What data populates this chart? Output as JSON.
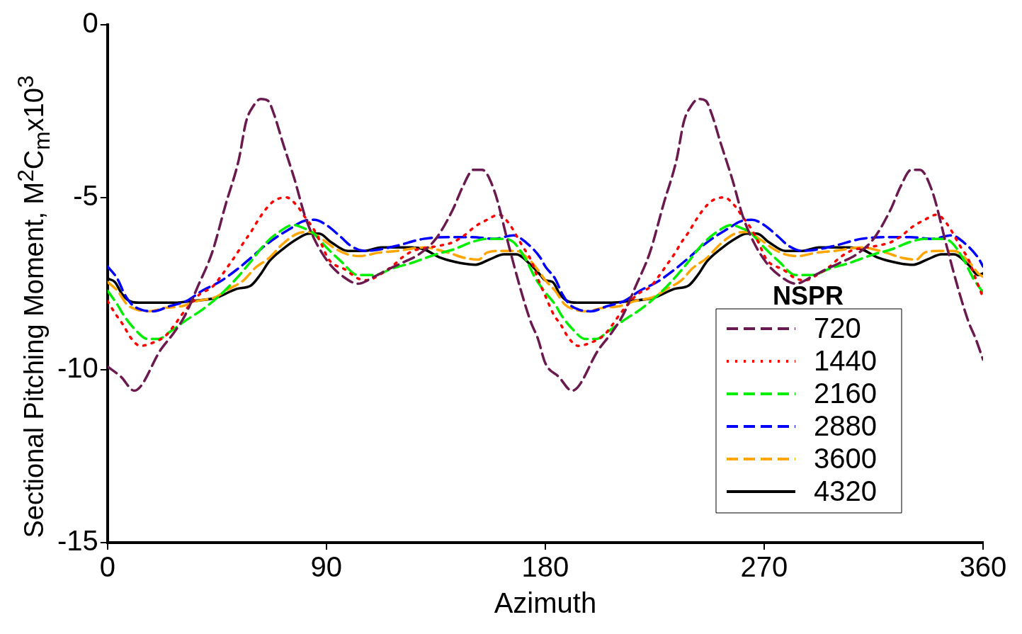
{
  "chart_data": {
    "type": "line",
    "xlabel": "Azimuth",
    "ylabel": "Sectional Pitching Moment, M$^{2}$C$_{m}$x10$^{3}$",
    "legend_title": "NSPR",
    "legend": "bottom right",
    "grid": false,
    "marker": "none",
    "xlim": [
      0,
      360
    ],
    "xticks": [
      0,
      90,
      180,
      270,
      360
    ],
    "ylim": [
      -15,
      0
    ],
    "yticks": [
      0,
      -5,
      -10,
      -15
    ],
    "series": [
      {
        "name": "720",
        "color": "#6b1a50",
        "line_style": "dashed",
        "x": [
          0,
          5.6,
          11,
          22,
          27.5,
          32,
          37,
          43,
          48.6,
          54,
          57,
          60,
          63,
          66,
          68.5,
          72,
          77,
          81,
          85,
          91,
          97,
          103,
          109.5,
          115,
          121,
          128,
          135,
          142,
          146,
          150.5,
          154,
          159,
          165,
          170,
          174,
          177,
          180,
          185.6,
          191,
          202,
          207.5,
          212,
          217,
          223,
          228.6,
          234,
          237,
          240,
          243,
          246,
          248.5,
          252,
          257,
          261,
          265,
          271,
          277,
          283,
          289.5,
          295,
          301,
          308,
          315,
          322,
          326,
          330.5,
          334,
          339,
          345,
          350,
          354,
          357,
          360
        ],
        "values": [
          -9.9,
          -10.2,
          -10.6,
          -9.4,
          -8.9,
          -8.4,
          -7.6,
          -6.6,
          -5.2,
          -3.9,
          -2.8,
          -2.35,
          -2.15,
          -2.2,
          -2.6,
          -3.4,
          -4.5,
          -5.5,
          -6.2,
          -6.9,
          -7.3,
          -7.5,
          -7.3,
          -7.1,
          -6.9,
          -6.65,
          -6.2,
          -5.35,
          -4.7,
          -4.2,
          -4.2,
          -4.8,
          -6.4,
          -7.7,
          -8.6,
          -9.1,
          -9.8,
          -10.2,
          -10.6,
          -9.4,
          -8.9,
          -8.4,
          -7.6,
          -6.6,
          -5.2,
          -3.9,
          -2.8,
          -2.35,
          -2.15,
          -2.2,
          -2.6,
          -3.4,
          -4.5,
          -5.5,
          -6.2,
          -6.9,
          -7.3,
          -7.5,
          -7.3,
          -7.1,
          -6.9,
          -6.65,
          -6.2,
          -5.35,
          -4.7,
          -4.2,
          -4.2,
          -4.8,
          -6.4,
          -7.7,
          -8.6,
          -9.1,
          -9.7
        ]
      },
      {
        "name": "1440",
        "color": "#ff0000",
        "line_style": "dotted",
        "x": [
          0,
          3.5,
          6.5,
          9.4,
          13.5,
          19,
          24,
          27.5,
          30.5,
          34,
          38,
          43,
          46.5,
          50,
          53,
          56,
          59,
          62,
          65,
          68.5,
          73.5,
          78,
          81,
          84.6,
          87.6,
          91,
          98,
          103,
          107,
          111.6,
          117,
          121,
          125.6,
          136.5,
          142,
          146.7,
          151,
          156,
          161,
          165,
          170.5,
          174,
          177.5,
          180,
          183.5,
          186.5,
          189.4,
          193.5,
          199,
          204,
          207.5,
          210.5,
          214,
          218,
          223,
          226.5,
          230,
          233,
          236,
          239,
          242,
          245,
          248.5,
          253.5,
          258,
          261,
          264.6,
          267.6,
          271,
          278,
          283,
          287,
          291.6,
          297,
          301,
          305.6,
          316.5,
          322,
          326.7,
          331,
          336,
          341,
          345,
          350.5,
          354,
          357.5,
          360
        ],
        "values": [
          -8.0,
          -8.4,
          -8.7,
          -9.05,
          -9.3,
          -9.2,
          -9.0,
          -8.7,
          -8.4,
          -8.1,
          -7.8,
          -7.6,
          -7.3,
          -6.95,
          -6.65,
          -6.3,
          -6.0,
          -5.65,
          -5.35,
          -5.1,
          -5.0,
          -5.25,
          -5.55,
          -5.9,
          -6.3,
          -6.8,
          -7.1,
          -7.35,
          -7.4,
          -7.25,
          -7.0,
          -6.75,
          -6.55,
          -6.4,
          -6.3,
          -6.1,
          -5.85,
          -5.65,
          -5.5,
          -5.75,
          -6.4,
          -6.8,
          -7.45,
          -7.85,
          -8.4,
          -8.7,
          -9.05,
          -9.3,
          -9.2,
          -9.0,
          -8.7,
          -8.4,
          -8.1,
          -7.8,
          -7.6,
          -7.3,
          -6.95,
          -6.65,
          -6.3,
          -6.0,
          -5.65,
          -5.35,
          -5.1,
          -5.0,
          -5.25,
          -5.55,
          -5.9,
          -6.3,
          -6.8,
          -7.1,
          -7.35,
          -7.4,
          -7.25,
          -7.0,
          -6.75,
          -6.55,
          -6.4,
          -6.3,
          -6.1,
          -5.85,
          -5.65,
          -5.5,
          -5.75,
          -6.4,
          -6.8,
          -7.45,
          -7.9
        ]
      },
      {
        "name": "2160",
        "color": "#00ee00",
        "line_style": "dashed",
        "x": [
          0,
          4,
          7,
          11,
          16.4,
          21,
          25.5,
          32.5,
          39,
          46,
          53,
          59,
          64.7,
          70.6,
          76.4,
          81,
          84,
          90,
          96,
          103,
          109.5,
          117.5,
          125,
          135,
          142.6,
          149.6,
          156,
          163,
          167,
          172,
          176,
          180,
          184,
          187,
          191,
          196.4,
          201,
          205.5,
          212.5,
          219,
          226,
          233,
          239,
          244.7,
          250.6,
          256.4,
          261,
          264,
          270,
          276,
          283,
          289.5,
          297.5,
          305,
          315,
          322.6,
          329.6,
          336,
          343,
          347,
          352,
          356,
          360
        ],
        "values": [
          -7.7,
          -8.1,
          -8.45,
          -8.8,
          -9.1,
          -9.1,
          -8.9,
          -8.55,
          -8.25,
          -7.85,
          -7.35,
          -6.85,
          -6.35,
          -6.0,
          -5.8,
          -5.9,
          -6.0,
          -6.45,
          -6.85,
          -7.25,
          -7.25,
          -7.05,
          -6.9,
          -6.65,
          -6.5,
          -6.3,
          -6.2,
          -6.2,
          -6.3,
          -6.8,
          -7.35,
          -7.75,
          -8.1,
          -8.45,
          -8.8,
          -9.1,
          -9.1,
          -8.9,
          -8.55,
          -8.25,
          -7.85,
          -7.35,
          -6.85,
          -6.35,
          -6.0,
          -5.8,
          -5.9,
          -6.0,
          -6.45,
          -6.85,
          -7.25,
          -7.25,
          -7.05,
          -6.9,
          -6.65,
          -6.5,
          -6.3,
          -6.2,
          -6.2,
          -6.3,
          -6.8,
          -7.35,
          -7.75
        ]
      },
      {
        "name": "2880",
        "color": "#0000ff",
        "line_style": "dashed",
        "x": [
          0,
          4,
          7,
          10,
          13.8,
          18.7,
          25.5,
          32.5,
          39,
          46,
          53,
          59,
          64.7,
          70.6,
          75.3,
          80,
          85,
          90,
          96,
          100,
          105.7,
          112.5,
          119,
          130,
          140,
          150,
          159,
          167,
          172,
          178,
          180,
          184,
          187,
          190,
          193.8,
          198.7,
          205.5,
          212.5,
          219,
          226,
          233,
          239,
          244.7,
          250.6,
          255.3,
          260,
          265,
          270,
          276,
          280,
          285.7,
          292.5,
          299,
          310,
          320,
          330,
          339,
          347,
          352,
          358,
          360
        ],
        "values": [
          -7.0,
          -7.35,
          -7.8,
          -8.1,
          -8.25,
          -8.3,
          -8.15,
          -8.0,
          -7.7,
          -7.45,
          -7.1,
          -6.75,
          -6.4,
          -6.1,
          -5.9,
          -5.7,
          -5.65,
          -5.8,
          -6.15,
          -6.4,
          -6.55,
          -6.5,
          -6.4,
          -6.2,
          -6.15,
          -6.15,
          -6.2,
          -6.1,
          -6.3,
          -6.75,
          -7.0,
          -7.35,
          -7.8,
          -8.1,
          -8.25,
          -8.3,
          -8.15,
          -8.0,
          -7.7,
          -7.45,
          -7.1,
          -6.75,
          -6.4,
          -6.1,
          -5.9,
          -5.7,
          -5.65,
          -5.8,
          -6.15,
          -6.4,
          -6.55,
          -6.5,
          -6.4,
          -6.2,
          -6.15,
          -6.15,
          -6.2,
          -6.1,
          -6.3,
          -6.75,
          -7.0
        ]
      },
      {
        "name": "3600",
        "color": "#ffa500",
        "line_style": "dashed",
        "x": [
          0,
          4,
          8,
          12,
          16.7,
          23.6,
          30.5,
          37,
          44,
          50,
          56,
          60.6,
          66.5,
          72,
          78,
          83,
          88,
          94,
          98.7,
          103.7,
          111.6,
          119,
          130,
          140,
          146.7,
          152.6,
          156,
          162,
          168,
          174,
          178,
          180,
          184,
          188,
          192,
          196.7,
          203.6,
          210.5,
          217,
          224,
          230,
          236,
          240.6,
          246.5,
          252,
          258,
          263,
          268,
          274,
          278.7,
          283.7,
          291.6,
          299,
          310,
          320,
          326.7,
          332.6,
          336,
          342,
          348,
          354,
          358,
          360
        ],
        "values": [
          -7.45,
          -7.7,
          -8.1,
          -8.25,
          -8.3,
          -8.2,
          -8.15,
          -8.0,
          -7.9,
          -7.65,
          -7.4,
          -7.05,
          -6.75,
          -6.35,
          -6.05,
          -6.0,
          -6.2,
          -6.5,
          -6.65,
          -6.7,
          -6.6,
          -6.55,
          -6.45,
          -6.6,
          -6.75,
          -6.8,
          -6.6,
          -6.55,
          -6.55,
          -6.85,
          -7.2,
          -7.4,
          -7.7,
          -8.1,
          -8.25,
          -8.3,
          -8.2,
          -8.15,
          -8.0,
          -7.9,
          -7.65,
          -7.4,
          -7.05,
          -6.75,
          -6.35,
          -6.05,
          -6.0,
          -6.2,
          -6.5,
          -6.65,
          -6.7,
          -6.6,
          -6.55,
          -6.45,
          -6.6,
          -6.75,
          -6.8,
          -6.6,
          -6.55,
          -6.55,
          -6.85,
          -7.2,
          -7.3
        ]
      },
      {
        "name": "4320",
        "color": "#000000",
        "line_style": "solid",
        "x": [
          0,
          3,
          6,
          9,
          13,
          27.5,
          35,
          45,
          53,
          59,
          62.7,
          66.5,
          72,
          78,
          83,
          87,
          92,
          98.7,
          105.7,
          112.5,
          125,
          130,
          137,
          145,
          151.4,
          157,
          163,
          168,
          174,
          178,
          180,
          183,
          186,
          189,
          193,
          207.5,
          215,
          225,
          233,
          239,
          242.7,
          246.5,
          252,
          258,
          263,
          267,
          272,
          278.7,
          285.7,
          292.5,
          305,
          310,
          317,
          325,
          331.4,
          337,
          343,
          348,
          354,
          358,
          360
        ],
        "values": [
          -7.35,
          -7.45,
          -7.8,
          -8.0,
          -8.05,
          -8.05,
          -8.0,
          -7.9,
          -7.65,
          -7.55,
          -7.25,
          -6.85,
          -6.5,
          -6.2,
          -6.05,
          -6.05,
          -6.3,
          -6.55,
          -6.55,
          -6.45,
          -6.45,
          -6.5,
          -6.75,
          -6.9,
          -6.95,
          -6.8,
          -6.65,
          -6.65,
          -6.95,
          -7.25,
          -7.4,
          -7.45,
          -7.8,
          -8.0,
          -8.05,
          -8.05,
          -8.0,
          -7.9,
          -7.65,
          -7.55,
          -7.25,
          -6.85,
          -6.5,
          -6.2,
          -6.05,
          -6.05,
          -6.3,
          -6.55,
          -6.55,
          -6.45,
          -6.45,
          -6.5,
          -6.75,
          -6.9,
          -6.95,
          -6.8,
          -6.65,
          -6.65,
          -6.95,
          -7.25,
          -7.2
        ]
      }
    ]
  }
}
